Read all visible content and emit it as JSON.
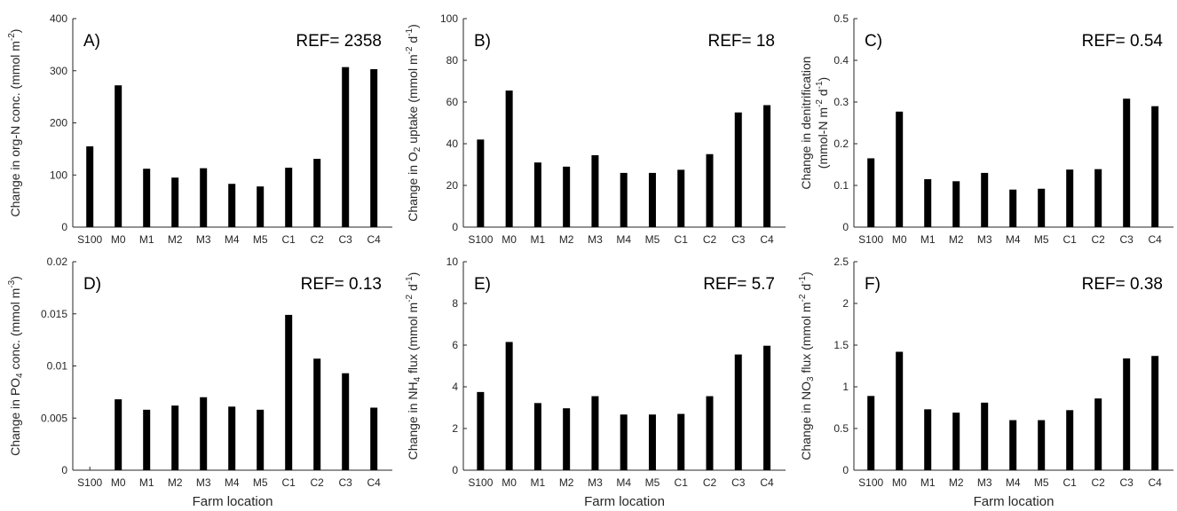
{
  "chart_data": [
    {
      "type": "bar",
      "panel_label": "A)",
      "ref_label": "REF= 2358",
      "ylabel": [
        "Change in org-N conc. (mmol m",
        "-2",
        ")"
      ],
      "xlabel": "",
      "categories": [
        "S100",
        "M0",
        "M1",
        "M2",
        "M3",
        "M4",
        "M5",
        "C1",
        "C2",
        "C3",
        "C4"
      ],
      "values": [
        155,
        272,
        112,
        95,
        113,
        83,
        78,
        114,
        131,
        307,
        303
      ],
      "ylim": [
        0,
        400
      ],
      "yticks": [
        0,
        100,
        200,
        300,
        400
      ],
      "ytick_labels": [
        "0",
        "100",
        "200",
        "300",
        "400"
      ]
    },
    {
      "type": "bar",
      "panel_label": "B)",
      "ref_label": "REF= 18",
      "ylabel": [
        "Change in O",
        "2",
        " uptake (mmol m",
        "-2",
        " d",
        "-1",
        ")"
      ],
      "xlabel": "",
      "categories": [
        "S100",
        "M0",
        "M1",
        "M2",
        "M3",
        "M4",
        "M5",
        "C1",
        "C2",
        "C3",
        "C4"
      ],
      "values": [
        42,
        65.5,
        31,
        29,
        34.5,
        26,
        26,
        27.5,
        35,
        55,
        58.5
      ],
      "ylim": [
        0,
        100
      ],
      "yticks": [
        0,
        20,
        40,
        60,
        80,
        100
      ],
      "ytick_labels": [
        "0",
        "20",
        "40",
        "60",
        "80",
        "100"
      ]
    },
    {
      "type": "bar",
      "panel_label": "C)",
      "ref_label": "REF= 0.54",
      "ylabel": [
        "Change in denitrification"
      ],
      "ylabel2": [
        "(mmol-N m",
        "-2",
        " d",
        "-1",
        ")"
      ],
      "xlabel": "",
      "categories": [
        "S100",
        "M0",
        "M1",
        "M2",
        "M3",
        "M4",
        "M5",
        "C1",
        "C2",
        "C3",
        "C4"
      ],
      "values": [
        0.165,
        0.277,
        0.115,
        0.11,
        0.13,
        0.09,
        0.092,
        0.138,
        0.139,
        0.308,
        0.29
      ],
      "ylim": [
        0,
        0.5
      ],
      "yticks": [
        0,
        0.1,
        0.2,
        0.3,
        0.4,
        0.5
      ],
      "ytick_labels": [
        "0",
        "0.1",
        "0.2",
        "0.3",
        "0.4",
        "0.5"
      ]
    },
    {
      "type": "bar",
      "panel_label": "D)",
      "ref_label": "REF= 0.13",
      "ylabel": [
        "Change in PO",
        "4",
        " conc. (mmol m",
        "-3",
        ")"
      ],
      "xlabel": "Farm location",
      "categories": [
        "S100",
        "M0",
        "M1",
        "M2",
        "M3",
        "M4",
        "M5",
        "C1",
        "C2",
        "C3",
        "C4"
      ],
      "values": [
        0,
        0.0068,
        0.0058,
        0.0062,
        0.007,
        0.0061,
        0.0058,
        0.0149,
        0.0107,
        0.0093,
        0.006
      ],
      "ylim": [
        0,
        0.02
      ],
      "yticks": [
        0,
        0.005,
        0.01,
        0.015,
        0.02
      ],
      "ytick_labels": [
        "0",
        "0.005",
        "0.01",
        "0.015",
        "0.02"
      ]
    },
    {
      "type": "bar",
      "panel_label": "E)",
      "ref_label": "REF= 5.7",
      "ylabel": [
        "Change in NH",
        "4",
        " flux (mmol m",
        "-2",
        " d",
        "-1",
        ")"
      ],
      "xlabel": "Farm location",
      "categories": [
        "S100",
        "M0",
        "M1",
        "M2",
        "M3",
        "M4",
        "M5",
        "C1",
        "C2",
        "C3",
        "C4"
      ],
      "values": [
        3.75,
        6.15,
        3.22,
        2.97,
        3.55,
        2.67,
        2.67,
        2.7,
        3.55,
        5.55,
        5.97
      ],
      "ylim": [
        0,
        10
      ],
      "yticks": [
        0,
        2,
        4,
        6,
        8,
        10
      ],
      "ytick_labels": [
        "0",
        "2",
        "4",
        "6",
        "8",
        "10"
      ]
    },
    {
      "type": "bar",
      "panel_label": "F)",
      "ref_label": "REF= 0.38",
      "ylabel": [
        "Change in NO",
        "3",
        " flux (mmol m",
        "-2",
        " d",
        "-1",
        ")"
      ],
      "xlabel": "Farm location",
      "categories": [
        "S100",
        "M0",
        "M1",
        "M2",
        "M3",
        "M4",
        "M5",
        "C1",
        "C2",
        "C3",
        "C4"
      ],
      "values": [
        0.89,
        1.42,
        0.73,
        0.69,
        0.81,
        0.6,
        0.6,
        0.72,
        0.86,
        1.34,
        1.37
      ],
      "ylim": [
        0,
        2.5
      ],
      "yticks": [
        0,
        0.5,
        1,
        1.5,
        2,
        2.5
      ],
      "ytick_labels": [
        "0",
        "0.5",
        "1",
        "1.5",
        "2",
        "2.5"
      ]
    }
  ]
}
